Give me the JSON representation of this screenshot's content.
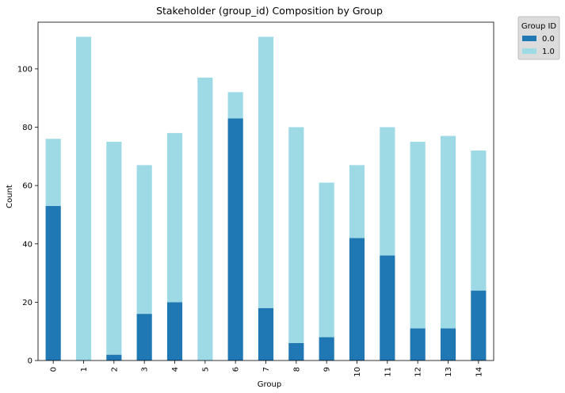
{
  "chart_data": {
    "type": "bar",
    "stacked": true,
    "title": "Stakeholder (group_id) Composition by Group",
    "xlabel": "Group",
    "ylabel": "Count",
    "categories": [
      "0",
      "1",
      "2",
      "3",
      "4",
      "5",
      "6",
      "7",
      "8",
      "9",
      "10",
      "11",
      "12",
      "13",
      "14"
    ],
    "series": [
      {
        "name": "0.0",
        "color": "#1f77b4",
        "values": [
          53,
          0,
          2,
          16,
          20,
          0,
          83,
          18,
          6,
          8,
          42,
          36,
          11,
          11,
          24
        ]
      },
      {
        "name": "1.0",
        "color": "#9edae5",
        "values": [
          23,
          111,
          73,
          51,
          58,
          97,
          9,
          93,
          74,
          53,
          25,
          44,
          64,
          66,
          48
        ]
      }
    ],
    "ylim": [
      0,
      116
    ],
    "yticks": [
      0,
      20,
      40,
      60,
      80,
      100
    ],
    "legend": {
      "title": "Group ID",
      "placement": "outside-top-right"
    },
    "grid": false
  }
}
